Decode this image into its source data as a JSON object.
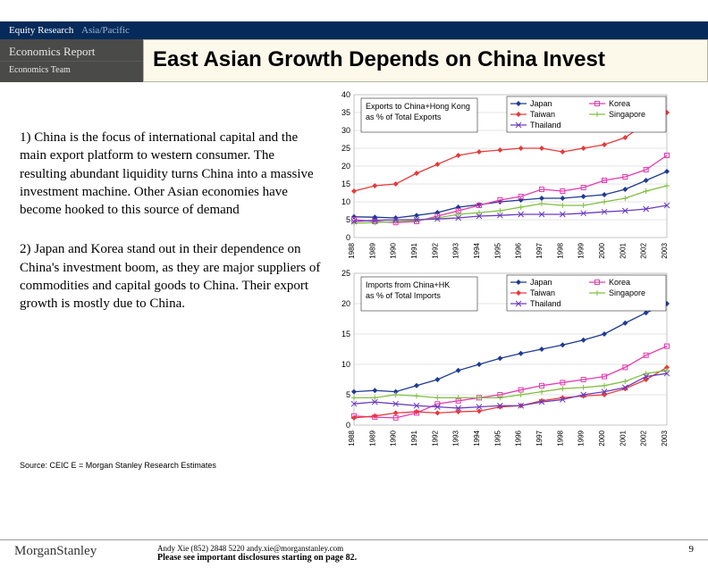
{
  "header": {
    "division": "Equity Research",
    "region": "Asia/Pacific"
  },
  "sidebar": {
    "report": "Economics Report",
    "team": "Economics Team"
  },
  "title": "East Asian Growth Depends on China Invest",
  "paragraphs": {
    "p1": "1) China is the focus of international capital and the main export platform to western consumer.  The resulting abundant liquidity turns China into a massive investment machine.  Other Asian economies have become hooked to this source of demand",
    "p2": "2) Japan and Korea stand out in their dependence on China's investment boom, as they are major suppliers of commodities and capital goods to China.  Their export growth is mostly due to China."
  },
  "source": "Source: CEIC E = Morgan Stanley Research Estimates",
  "footer": {
    "contact": "Andy Xie (852) 2848 5220  andy.xie@morganstanley.com",
    "disclosure": "Please see important disclosures starting on page 82.",
    "logo": "MorganStanley",
    "page": "9"
  },
  "charts": {
    "shared": {
      "years": [
        "1988",
        "1989",
        "1990",
        "1991",
        "1992",
        "1993",
        "1994",
        "1995",
        "1996",
        "1997",
        "1998",
        "1999",
        "2000",
        "2001",
        "2002",
        "2003"
      ],
      "series_names": [
        "Japan",
        "Korea",
        "Taiwan",
        "Singapore",
        "Thailand"
      ],
      "series_colors": [
        "#1f3a93",
        "#e63bb0",
        "#e63b3b",
        "#7fbf3f",
        "#6a3bbf"
      ],
      "series_markers": [
        "diamond",
        "square",
        "diamond",
        "cross",
        "x"
      ],
      "grid_color": "#c8c8c8",
      "bg_color": "#ffffff",
      "axis_color": "#000000",
      "label_fontsize": 9
    },
    "top": {
      "title": "Exports to China+Hong Kong as % of Total Exports",
      "ylim": [
        0,
        40
      ],
      "ytick_step": 5,
      "legend": [
        [
          "Japan",
          "Korea"
        ],
        [
          "Taiwan",
          "Singapore"
        ],
        [
          "Thailand",
          ""
        ]
      ],
      "data": {
        "Japan": [
          5.8,
          5.7,
          5.5,
          6.2,
          7.0,
          8.5,
          9.2,
          10.0,
          10.5,
          11.0,
          11.0,
          11.5,
          12.0,
          13.5,
          16.0,
          18.5
        ],
        "Korea": [
          5.0,
          4.5,
          4.2,
          4.5,
          6.0,
          7.5,
          9.0,
          10.5,
          11.5,
          13.5,
          13.0,
          14.0,
          16.0,
          17.0,
          19.0,
          23.0
        ],
        "Taiwan": [
          13.0,
          14.5,
          15.0,
          18.0,
          20.5,
          23.0,
          24.0,
          24.5,
          25.0,
          25.0,
          24.0,
          25.0,
          26.0,
          28.0,
          32.0,
          35.0
        ],
        "Singapore": [
          4.0,
          4.2,
          4.5,
          4.8,
          5.5,
          6.5,
          7.0,
          7.5,
          8.5,
          9.5,
          9.0,
          9.0,
          10.0,
          11.0,
          13.0,
          14.5
        ],
        "Thailand": [
          4.5,
          4.8,
          5.0,
          5.0,
          5.2,
          5.5,
          6.0,
          6.2,
          6.5,
          6.5,
          6.5,
          6.8,
          7.2,
          7.5,
          8.0,
          9.0
        ]
      }
    },
    "bottom": {
      "title": "Imports from China+HK as % of Total Imports",
      "ylim": [
        0,
        25
      ],
      "ytick_step": 5,
      "legend": [
        [
          "Japan",
          "Korea"
        ],
        [
          "Taiwan",
          "Singapore"
        ],
        [
          "Thailand",
          ""
        ]
      ],
      "data": {
        "Japan": [
          5.5,
          5.7,
          5.5,
          6.5,
          7.5,
          9.0,
          10.0,
          11.0,
          11.8,
          12.5,
          13.2,
          14.0,
          15.0,
          16.8,
          18.5,
          20.0
        ],
        "Korea": [
          1.5,
          1.3,
          1.2,
          2.0,
          3.5,
          4.0,
          4.5,
          5.0,
          5.8,
          6.5,
          7.0,
          7.5,
          8.0,
          9.5,
          11.5,
          13.0
        ],
        "Taiwan": [
          1.2,
          1.5,
          2.0,
          2.2,
          2.0,
          2.2,
          2.3,
          3.0,
          3.2,
          4.0,
          4.5,
          4.8,
          5.0,
          6.0,
          7.5,
          9.5
        ],
        "Singapore": [
          4.5,
          4.5,
          5.0,
          4.8,
          4.5,
          4.5,
          4.5,
          4.5,
          5.0,
          5.5,
          6.0,
          6.2,
          6.5,
          7.2,
          8.5,
          9.0
        ],
        "Thailand": [
          3.5,
          3.8,
          3.5,
          3.2,
          3.0,
          2.8,
          3.0,
          3.2,
          3.2,
          3.8,
          4.2,
          5.0,
          5.5,
          6.2,
          8.0,
          8.5
        ]
      }
    }
  }
}
